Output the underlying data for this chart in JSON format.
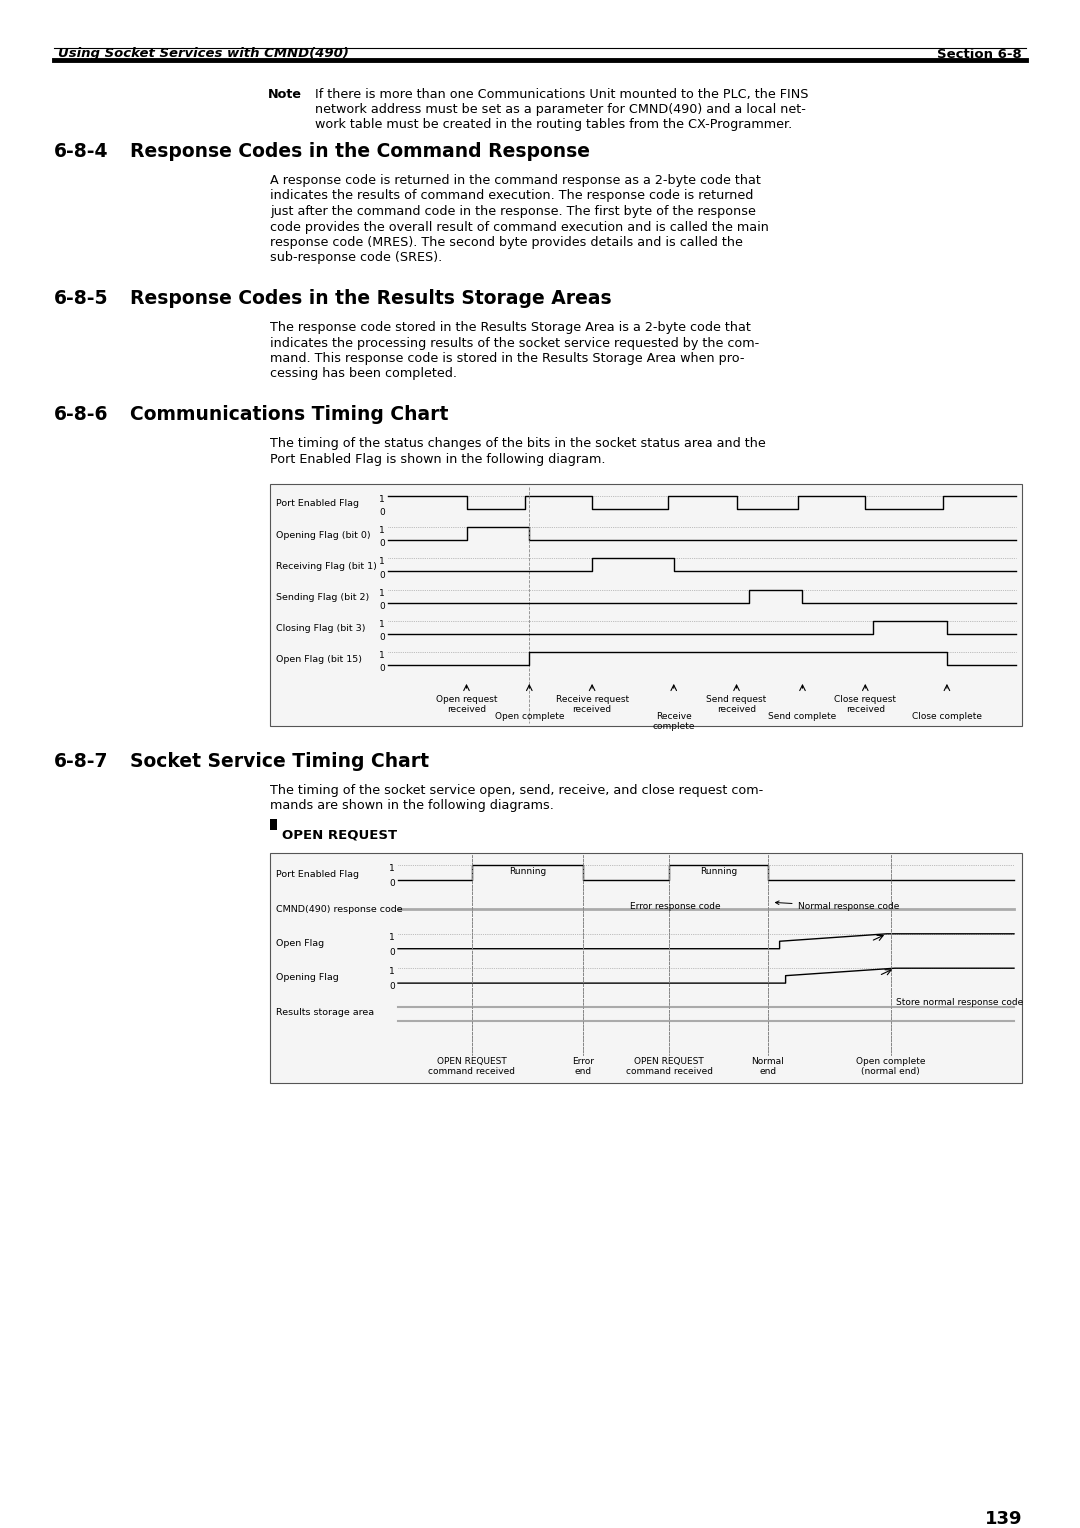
{
  "page_bg": "#ffffff",
  "header_italic_text": "Using Socket Services with CMND(490)",
  "header_bold_text": "Section 6-8",
  "note_text_bold": "Note",
  "note_line1": "If there is more than one Communications Unit mounted to the PLC, the FINS",
  "note_line2": "network address must be set as a parameter for CMND(490) and a local net-",
  "note_line3": "work table must be created in the routing tables from the CX-Programmer.",
  "sec684_num": "6-8-4",
  "sec684_title": "Response Codes in the Command Response",
  "sec684_body": [
    "A response code is returned in the command response as a 2-byte code that",
    "indicates the results of command execution. The response code is returned",
    "just after the command code in the response. The first byte of the response",
    "code provides the overall result of command execution and is called the main",
    "response code (MRES). The second byte provides details and is called the",
    "sub-response code (SRES)."
  ],
  "sec685_num": "6-8-5",
  "sec685_title": "Response Codes in the Results Storage Areas",
  "sec685_body": [
    "The response code stored in the Results Storage Area is a 2-byte code that",
    "indicates the processing results of the socket service requested by the com-",
    "mand. This response code is stored in the Results Storage Area when pro-",
    "cessing has been completed."
  ],
  "sec686_num": "6-8-6",
  "sec686_title": "Communications Timing Chart",
  "sec686_body": [
    "The timing of the status changes of the bits in the socket status area and the",
    "Port Enabled Flag is shown in the following diagram."
  ],
  "sec687_num": "6-8-7",
  "sec687_title": "Socket Service Timing Chart",
  "sec687_body": [
    "The timing of the socket service open, send, receive, and close request com-",
    "mands are shown in the following diagrams."
  ],
  "open_req_label": "OPEN REQUEST",
  "page_number": "139",
  "chart1_signals": [
    "Port Enabled Flag",
    "Opening Flag (bit 0)",
    "Receiving Flag (bit 1)",
    "Sending Flag (bit 2)",
    "Closing Flag (bit 3)",
    "Open Flag (bit 15)"
  ],
  "chart2_signals": [
    "Port Enabled Flag",
    "CMND(490) response code",
    "Open Flag",
    "Opening Flag",
    "Results storage area"
  ]
}
